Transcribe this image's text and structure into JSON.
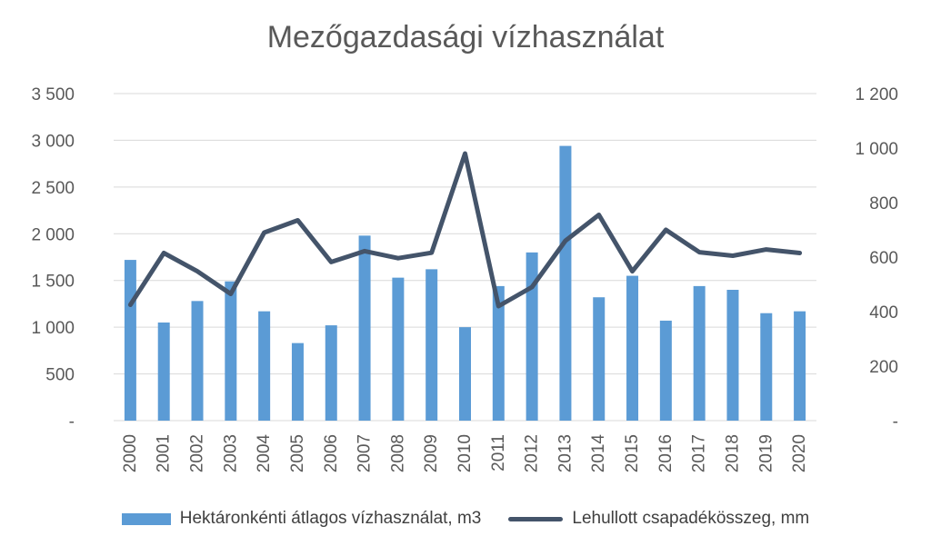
{
  "chart_data": {
    "type": "bar+line",
    "title": "Mezőgazdasági vízhasználat",
    "categories": [
      "2000",
      "2001",
      "2002",
      "2003",
      "2004",
      "2005",
      "2006",
      "2007",
      "2008",
      "2009",
      "2010",
      "2011",
      "2012",
      "2013",
      "2014",
      "2015",
      "2016",
      "2017",
      "2018",
      "2019",
      "2020"
    ],
    "series": [
      {
        "name": "Hektáronkénti átlagos vízhasználat, m3",
        "kind": "bar",
        "axis": "left",
        "color": "#5b9bd5",
        "values": [
          1720,
          1050,
          1280,
          1490,
          1170,
          830,
          1020,
          1980,
          1530,
          1620,
          1000,
          1440,
          1800,
          2940,
          1320,
          1550,
          1070,
          1440,
          1400,
          1150,
          1170
        ]
      },
      {
        "name": "Lehullott csapadékösszeg, mm",
        "kind": "line",
        "axis": "right",
        "color": "#44546a",
        "values": [
          425,
          615,
          548,
          465,
          690,
          735,
          582,
          622,
          596,
          616,
          980,
          420,
          490,
          660,
          755,
          548,
          700,
          618,
          605,
          628,
          615
        ]
      }
    ],
    "y_left": {
      "min": 0,
      "max": 3500,
      "ticks": [
        0,
        500,
        1000,
        1500,
        2000,
        2500,
        3000,
        3500
      ],
      "tick_labels": [
        "-",
        "500",
        "1 000",
        "1 500",
        "2 000",
        "2 500",
        "3 000",
        "3 500"
      ]
    },
    "y_right": {
      "min": 0,
      "max": 1200,
      "ticks": [
        0,
        200,
        400,
        600,
        800,
        1000,
        1200
      ],
      "tick_labels": [
        "-",
        "200",
        "400",
        "600",
        "800",
        "1 000",
        "1 200"
      ]
    },
    "grid": true,
    "legend_position": "bottom"
  }
}
